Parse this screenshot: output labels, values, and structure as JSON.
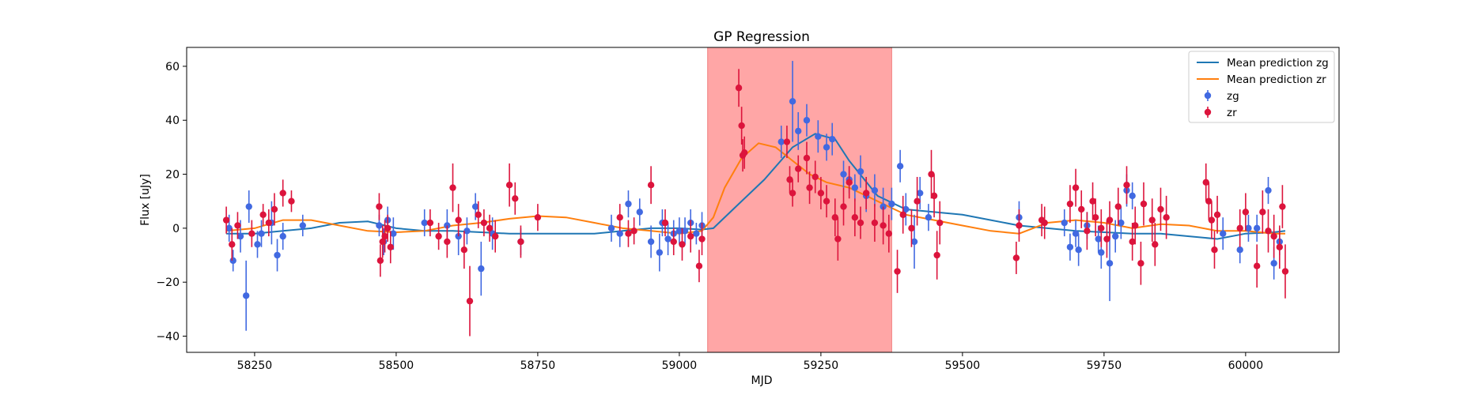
{
  "chart_data": {
    "type": "scatter",
    "title": "GP Regression",
    "xlabel": "MJD",
    "ylabel": "Flux [uJy]",
    "xlim": [
      58130,
      60165
    ],
    "ylim": [
      -46,
      67
    ],
    "xticks": [
      58250,
      58500,
      58750,
      59000,
      59250,
      59500,
      59750,
      60000
    ],
    "yticks": [
      -40,
      -20,
      0,
      20,
      40,
      60
    ],
    "grid": false,
    "legend_position": "top-right",
    "shaded_region": {
      "x_start": 59050,
      "x_end": 59375,
      "color": "#ffa6a6"
    },
    "series": [
      {
        "name": "Mean prediction zg",
        "kind": "line",
        "color": "#1f77b4",
        "x": [
          58200,
          58250,
          58300,
          58350,
          58400,
          58450,
          58500,
          58550,
          58600,
          58650,
          58700,
          58750,
          58800,
          58850,
          58900,
          58950,
          59000,
          59040,
          59060,
          59100,
          59150,
          59200,
          59240,
          59275,
          59300,
          59350,
          59400,
          59450,
          59500,
          59550,
          59600,
          59650,
          59700,
          59750,
          59800,
          59850,
          59900,
          59950,
          60000,
          60050,
          60070
        ],
        "y": [
          -2,
          -2,
          -1,
          0,
          2,
          2.5,
          0,
          -1,
          -1,
          -1.5,
          -2,
          -2,
          -2,
          -2,
          -1,
          0,
          0,
          -0.5,
          0,
          8,
          18,
          30,
          35,
          33,
          25,
          12,
          7,
          6,
          5,
          3,
          1,
          0,
          -1,
          -1.5,
          -2,
          -2,
          -3,
          -4,
          -2,
          -1.5,
          -1
        ]
      },
      {
        "name": "Mean prediction zr",
        "kind": "line",
        "color": "#ff7f0e",
        "x": [
          58200,
          58250,
          58300,
          58350,
          58400,
          58450,
          58500,
          58550,
          58600,
          58650,
          58700,
          58750,
          58800,
          58850,
          58900,
          58950,
          59000,
          59040,
          59060,
          59080,
          59110,
          59140,
          59170,
          59200,
          59230,
          59260,
          59300,
          59350,
          59400,
          59450,
          59500,
          59550,
          59600,
          59650,
          59700,
          59750,
          59800,
          59850,
          59900,
          59950,
          60000,
          60050,
          60070
        ],
        "y": [
          -1,
          0,
          3,
          3,
          1,
          -1,
          -1.5,
          -1,
          1,
          2,
          3.5,
          4.5,
          4,
          2,
          0,
          -1,
          -2,
          -1,
          4,
          15,
          26,
          31.5,
          30,
          25,
          20,
          17,
          15,
          10,
          5,
          3,
          1,
          -1,
          -2,
          2,
          3,
          2,
          0,
          1.5,
          1,
          -1,
          -1,
          -2,
          -2
        ]
      },
      {
        "name": "zg",
        "kind": "errorbar",
        "color": "#4169e1",
        "x": [
          58205,
          58212,
          58225,
          58235,
          58240,
          58255,
          58262,
          58280,
          58290,
          58300,
          58335,
          58470,
          58478,
          58485,
          58495,
          58550,
          58590,
          58610,
          58625,
          58640,
          58650,
          58670,
          58720,
          58880,
          58895,
          58910,
          58930,
          58950,
          58965,
          58970,
          58980,
          58990,
          59000,
          59010,
          59020,
          59030,
          59040,
          59180,
          59200,
          59210,
          59225,
          59245,
          59260,
          59270,
          59290,
          59300,
          59310,
          59320,
          59330,
          59345,
          59360,
          59375,
          59390,
          59400,
          59415,
          59425,
          59440,
          59600,
          59680,
          59690,
          59700,
          59705,
          59720,
          59740,
          59745,
          59760,
          59770,
          59780,
          59790,
          59800,
          59960,
          59990,
          60005,
          60020,
          60040,
          60050,
          60060
        ],
        "y": [
          0,
          -12,
          -3,
          -25,
          8,
          -6,
          -2,
          2,
          -10,
          -3,
          1,
          1,
          -5,
          3,
          -2,
          2,
          1,
          -3,
          -1,
          8,
          -15,
          -2,
          -5,
          0,
          -2,
          9,
          6,
          -5,
          -9,
          2,
          -4,
          -2,
          -1,
          -1,
          2,
          -2,
          1,
          32,
          47,
          36,
          40,
          34,
          30,
          33,
          20,
          18,
          15,
          21,
          12,
          14,
          8,
          9,
          23,
          7,
          -5,
          13,
          4,
          4,
          2,
          -7,
          -2,
          -8,
          1,
          -4,
          -9,
          -13,
          -3,
          2,
          14,
          12,
          -2,
          -8,
          0,
          0,
          14,
          -13,
          -5
        ],
        "error": [
          5,
          4,
          6,
          13,
          6,
          5,
          5,
          8,
          6,
          5,
          4,
          4,
          5,
          5,
          6,
          5,
          6,
          7,
          5,
          5,
          10,
          6,
          5,
          5,
          5,
          5,
          5,
          6,
          7,
          5,
          6,
          5,
          5,
          5,
          5,
          4,
          5,
          6,
          15,
          7,
          6,
          6,
          5,
          6,
          5,
          5,
          5,
          6,
          6,
          6,
          7,
          6,
          6,
          6,
          10,
          6,
          5,
          6,
          5,
          5,
          5,
          6,
          5,
          5,
          6,
          14,
          6,
          6,
          6,
          5,
          6,
          5,
          5,
          5,
          5,
          6,
          5
        ]
      },
      {
        "name": "zr",
        "kind": "errorbar",
        "color": "#dc143c",
        "x": [
          58200,
          58210,
          58220,
          58245,
          58265,
          58275,
          58285,
          58300,
          58315,
          58470,
          58472,
          58476,
          58480,
          58485,
          58490,
          58560,
          58575,
          58590,
          58600,
          58610,
          58620,
          58630,
          58645,
          58655,
          58665,
          58675,
          58700,
          58710,
          58720,
          58750,
          58895,
          58910,
          58920,
          58950,
          58975,
          58990,
          59005,
          59020,
          59035,
          59040,
          59105,
          59110,
          59112,
          59115,
          59190,
          59195,
          59200,
          59210,
          59225,
          59230,
          59240,
          59250,
          59260,
          59275,
          59280,
          59290,
          59300,
          59310,
          59320,
          59330,
          59345,
          59360,
          59370,
          59385,
          59395,
          59410,
          59420,
          59445,
          59450,
          59455,
          59460,
          59595,
          59600,
          59640,
          59645,
          59690,
          59700,
          59710,
          59720,
          59730,
          59735,
          59745,
          59755,
          59760,
          59775,
          59790,
          59800,
          59805,
          59815,
          59820,
          59835,
          59840,
          59850,
          59860,
          59930,
          59935,
          59940,
          59945,
          59950,
          59990,
          60000,
          60020,
          60030,
          60040,
          60050,
          60060,
          60065,
          60070
        ],
        "y": [
          3,
          -6,
          1,
          -2,
          5,
          2,
          7,
          13,
          10,
          8,
          -12,
          -5,
          -3,
          0,
          -7,
          2,
          -3,
          -5,
          15,
          3,
          -8,
          -27,
          5,
          2,
          0,
          -3,
          16,
          11,
          -5,
          4,
          4,
          -2,
          -1,
          16,
          2,
          -5,
          -6,
          -3,
          -14,
          -4,
          52,
          38,
          27,
          28,
          32,
          18,
          13,
          22,
          26,
          15,
          19,
          13,
          10,
          4,
          -4,
          8,
          17,
          4,
          2,
          13,
          2,
          1,
          -2,
          -16,
          5,
          0,
          10,
          20,
          12,
          -10,
          2,
          -11,
          1,
          3,
          2,
          9,
          15,
          7,
          -1,
          10,
          4,
          0,
          -4,
          3,
          8,
          16,
          -5,
          1,
          -13,
          9,
          3,
          -6,
          7,
          4,
          17,
          10,
          3,
          -8,
          5,
          0,
          6,
          -14,
          6,
          -1,
          -3,
          -7,
          8,
          -16
        ],
        "error": [
          5,
          6,
          5,
          5,
          4,
          5,
          6,
          5,
          4,
          5,
          6,
          6,
          6,
          5,
          6,
          5,
          5,
          6,
          9,
          6,
          7,
          13,
          5,
          5,
          5,
          6,
          8,
          6,
          6,
          5,
          5,
          5,
          5,
          7,
          5,
          5,
          6,
          6,
          6,
          6,
          7,
          7,
          6,
          6,
          6,
          5,
          5,
          5,
          6,
          6,
          6,
          6,
          6,
          7,
          8,
          7,
          6,
          7,
          6,
          6,
          7,
          7,
          7,
          8,
          7,
          7,
          9,
          9,
          8,
          9,
          8,
          6,
          6,
          6,
          6,
          7,
          7,
          7,
          7,
          7,
          7,
          7,
          7,
          7,
          7,
          7,
          7,
          7,
          8,
          8,
          8,
          8,
          8,
          8,
          7,
          7,
          7,
          7,
          7,
          7,
          7,
          8,
          8,
          8,
          8,
          8,
          8,
          10
        ]
      }
    ]
  }
}
